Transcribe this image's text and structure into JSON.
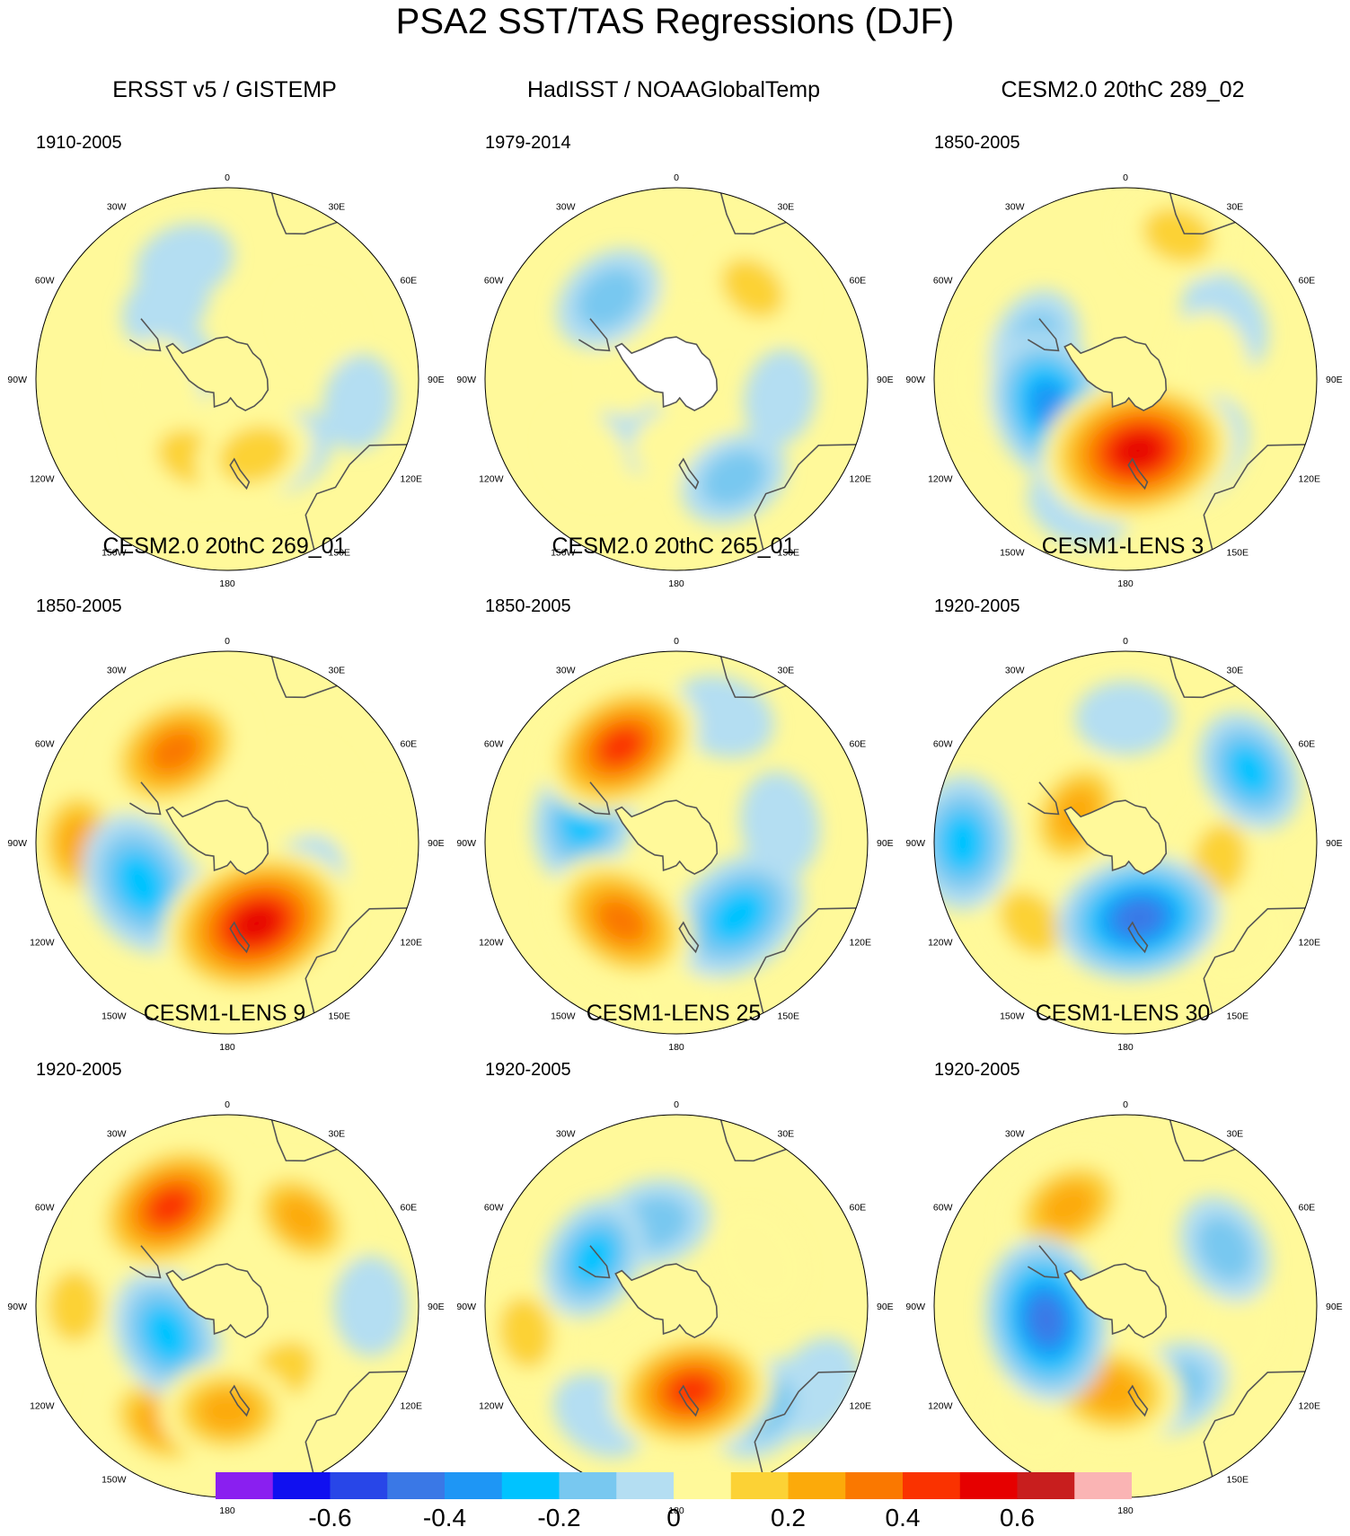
{
  "title": "PSA2 SST/TAS Regressions (DJF)",
  "longitude_labels": [
    "0",
    "30E",
    "60E",
    "90E",
    "120E",
    "150E",
    "180",
    "150W",
    "120W",
    "90W",
    "60W",
    "30W"
  ],
  "panels": [
    {
      "title": "ERSST v5 / GISTEMP",
      "period": "1910-2005"
    },
    {
      "title": "HadISST / NOAAGlobalTemp",
      "period": "1979-2014"
    },
    {
      "title": "CESM2.0 20thC 289_02",
      "period": "1850-2005"
    },
    {
      "title": "CESM2.0 20thC 269_01",
      "period": "1850-2005"
    },
    {
      "title": "CESM2.0 20thC 265_01",
      "period": "1850-2005"
    },
    {
      "title": "CESM1-LENS 3",
      "period": "1920-2005"
    },
    {
      "title": "CESM1-LENS 9",
      "period": "1920-2005"
    },
    {
      "title": "CESM1-LENS 25",
      "period": "1920-2005"
    },
    {
      "title": "CESM1-LENS 30",
      "period": "1920-2005"
    }
  ],
  "colorbar": {
    "colors": [
      "#8a1ff0",
      "#1010f0",
      "#2846e8",
      "#3a78e6",
      "#1e96f5",
      "#00c3ff",
      "#78c8f0",
      "#b4def2",
      "#fff99a",
      "#fcd235",
      "#fcaa0a",
      "#fa7800",
      "#fa3200",
      "#e60000",
      "#c81e1e",
      "#fab4b4"
    ],
    "labels": [
      "-0.6",
      "-0.4",
      "-0.2",
      "0",
      "0.2",
      "0.4",
      "0.6"
    ],
    "label_positions": [
      2,
      4,
      6,
      8,
      10,
      12,
      14
    ]
  },
  "chart_data": {
    "type": "heatmap",
    "projection": "south polar stereographic",
    "variable": "SST/TAS regression on PSA2 index",
    "season": "DJF",
    "contour_levels": [
      -0.7,
      -0.6,
      -0.5,
      -0.4,
      -0.3,
      -0.2,
      -0.1,
      0,
      0.1,
      0.2,
      0.3,
      0.4,
      0.5,
      0.6,
      0.7
    ],
    "panels_anomalies": [
      [
        [
          160,
          0.42,
          0.22
        ],
        [
          205,
          0.45,
          0.18
        ],
        [
          260,
          0.35,
          0.15
        ],
        [
          60,
          0.55,
          0.05
        ],
        [
          340,
          0.65,
          -0.12
        ],
        [
          140,
          0.5,
          -0.1
        ],
        [
          280,
          0.25,
          -0.08
        ],
        [
          320,
          0.5,
          -0.1
        ],
        [
          100,
          0.7,
          -0.1
        ]
      ],
      [
        [
          320,
          0.55,
          -0.2
        ],
        [
          150,
          0.6,
          -0.18
        ],
        [
          100,
          0.55,
          -0.1
        ],
        [
          210,
          0.35,
          -0.08
        ],
        [
          175,
          0.35,
          0.12
        ],
        [
          40,
          0.62,
          0.18
        ],
        [
          285,
          0.25,
          0.12
        ],
        [
          230,
          0.6,
          0.08
        ],
        [
          0,
          0.35,
          0.05
        ]
      ],
      [
        [
          170,
          0.38,
          0.6
        ],
        [
          250,
          0.42,
          -0.4
        ],
        [
          290,
          0.5,
          -0.2
        ],
        [
          140,
          0.5,
          -0.3
        ],
        [
          20,
          0.8,
          0.2
        ],
        [
          270,
          0.72,
          0.15
        ],
        [
          200,
          0.7,
          -0.15
        ],
        [
          60,
          0.6,
          -0.15
        ],
        [
          80,
          0.45,
          0.15
        ]
      ],
      [
        [
          160,
          0.45,
          0.6
        ],
        [
          245,
          0.5,
          -0.35
        ],
        [
          210,
          0.38,
          -0.15
        ],
        [
          330,
          0.55,
          0.38
        ],
        [
          270,
          0.78,
          0.25
        ],
        [
          60,
          0.5,
          0.15
        ],
        [
          120,
          0.45,
          -0.15
        ],
        [
          160,
          0.8,
          0.12
        ],
        [
          90,
          0.8,
          0.12
        ]
      ],
      [
        [
          330,
          0.58,
          0.45
        ],
        [
          215,
          0.5,
          0.4
        ],
        [
          140,
          0.5,
          -0.35
        ],
        [
          285,
          0.5,
          -0.3
        ],
        [
          80,
          0.55,
          -0.15
        ],
        [
          20,
          0.7,
          -0.15
        ],
        [
          180,
          0.8,
          0.05
        ]
      ],
      [
        [
          170,
          0.4,
          -0.45
        ],
        [
          300,
          0.3,
          0.28
        ],
        [
          270,
          0.85,
          -0.3
        ],
        [
          230,
          0.65,
          0.2
        ],
        [
          60,
          0.75,
          -0.25
        ],
        [
          100,
          0.5,
          0.2
        ],
        [
          130,
          0.8,
          0.15
        ],
        [
          0,
          0.65,
          -0.12
        ]
      ],
      [
        [
          330,
          0.6,
          0.45
        ],
        [
          245,
          0.35,
          -0.3
        ],
        [
          40,
          0.6,
          0.25
        ],
        [
          180,
          0.55,
          0.3
        ],
        [
          210,
          0.7,
          0.25
        ],
        [
          140,
          0.45,
          0.2
        ],
        [
          90,
          0.75,
          -0.12
        ],
        [
          270,
          0.8,
          0.2
        ]
      ],
      [
        [
          170,
          0.45,
          0.45
        ],
        [
          300,
          0.5,
          -0.25
        ],
        [
          345,
          0.45,
          -0.2
        ],
        [
          60,
          0.5,
          0.15
        ],
        [
          260,
          0.8,
          0.2
        ],
        [
          140,
          0.7,
          -0.2
        ],
        [
          120,
          0.85,
          -0.15
        ],
        [
          215,
          0.7,
          -0.12
        ]
      ],
      [
        [
          260,
          0.42,
          -0.45
        ],
        [
          190,
          0.45,
          0.35
        ],
        [
          330,
          0.6,
          0.3
        ],
        [
          150,
          0.5,
          -0.2
        ],
        [
          60,
          0.6,
          -0.18
        ],
        [
          100,
          0.6,
          0.12
        ],
        [
          220,
          0.8,
          0.1
        ]
      ]
    ]
  }
}
